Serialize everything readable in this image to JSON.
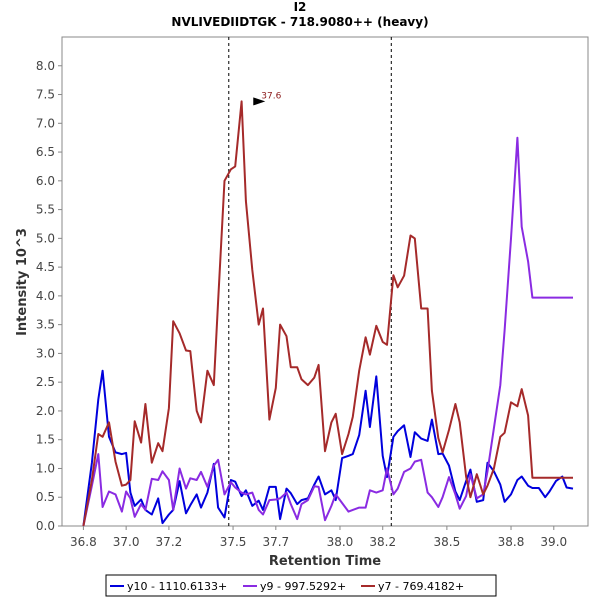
{
  "chart_data": {
    "type": "line",
    "title": "I2",
    "subtitle": "NVLIVEDIIDTGK - 718.9080++ (heavy)",
    "xlabel": "Retention Time",
    "ylabel": "Intensity 10^3",
    "xlim": [
      36.7,
      39.16
    ],
    "ylim": [
      0,
      8.5
    ],
    "xticks": [
      36.8,
      37.0,
      37.2,
      37.5,
      37.7,
      38.0,
      38.2,
      38.5,
      38.8,
      39.0
    ],
    "yticks": [
      0.0,
      0.5,
      1.0,
      1.5,
      2.0,
      2.5,
      3.0,
      3.5,
      4.0,
      4.5,
      5.0,
      5.5,
      6.0,
      6.5,
      7.0,
      7.5,
      8.0
    ],
    "vertical_lines": [
      37.48,
      38.24
    ],
    "annotation": {
      "text": "37.6",
      "x": 37.66,
      "y": 7.38
    },
    "legend_position": "bottom",
    "grid": false,
    "series": [
      {
        "name": "y10 - 1110.6133+",
        "color": "#0000dd",
        "x": [
          36.8,
          36.84,
          36.87,
          36.89,
          36.92,
          36.95,
          36.98,
          37.0,
          37.02,
          37.04,
          37.07,
          37.09,
          37.12,
          37.15,
          37.17,
          37.2,
          37.22,
          37.25,
          37.28,
          37.3,
          37.33,
          37.35,
          37.38,
          37.41,
          37.43,
          37.46,
          37.49,
          37.51,
          37.54,
          37.56,
          37.59,
          37.62,
          37.64,
          37.67,
          37.7,
          37.72,
          37.75,
          37.77,
          37.8,
          37.82,
          37.85,
          37.88,
          37.9,
          37.93,
          37.96,
          37.98,
          38.01,
          38.04,
          38.06,
          38.09,
          38.12,
          38.14,
          38.17,
          38.2,
          38.22,
          38.25,
          38.27,
          38.3,
          38.33,
          38.35,
          38.38,
          38.41,
          38.43,
          38.46,
          38.48,
          38.51,
          38.54,
          38.56,
          38.59,
          38.61,
          38.64,
          38.67,
          38.69,
          38.72,
          38.75,
          38.77,
          38.8,
          38.83,
          38.85,
          38.88,
          38.9,
          38.93,
          38.96,
          38.98,
          39.01,
          39.04,
          39.06,
          39.09
        ],
        "y": [
          0.0,
          1.1,
          2.2,
          2.7,
          1.55,
          1.28,
          1.25,
          1.27,
          0.58,
          0.35,
          0.46,
          0.28,
          0.2,
          0.48,
          0.05,
          0.2,
          0.28,
          0.78,
          0.22,
          0.36,
          0.55,
          0.32,
          0.58,
          1.08,
          0.32,
          0.15,
          0.8,
          0.77,
          0.52,
          0.62,
          0.35,
          0.44,
          0.28,
          0.68,
          0.68,
          0.12,
          0.65,
          0.57,
          0.38,
          0.45,
          0.48,
          0.72,
          0.86,
          0.55,
          0.62,
          0.45,
          1.18,
          1.22,
          1.25,
          1.58,
          2.35,
          1.72,
          2.6,
          1.22,
          0.85,
          1.55,
          1.65,
          1.75,
          1.2,
          1.63,
          1.52,
          1.48,
          1.85,
          1.25,
          1.26,
          1.05,
          0.6,
          0.45,
          0.78,
          0.98,
          0.42,
          0.45,
          1.1,
          0.95,
          0.72,
          0.42,
          0.55,
          0.8,
          0.86,
          0.7,
          0.66,
          0.66,
          0.5,
          0.6,
          0.78,
          0.86,
          0.67,
          0.65
        ]
      },
      {
        "name": "y9 - 997.5292+",
        "color": "#8a2be2",
        "x": [
          36.8,
          36.84,
          36.87,
          36.89,
          36.92,
          36.95,
          36.98,
          37.0,
          37.02,
          37.04,
          37.07,
          37.09,
          37.12,
          37.15,
          37.17,
          37.2,
          37.22,
          37.25,
          37.28,
          37.3,
          37.33,
          37.35,
          37.38,
          37.41,
          37.43,
          37.46,
          37.49,
          37.51,
          37.54,
          37.56,
          37.59,
          37.62,
          37.64,
          37.67,
          37.7,
          37.72,
          37.75,
          37.77,
          37.8,
          37.82,
          37.85,
          37.88,
          37.9,
          37.93,
          37.96,
          37.98,
          38.01,
          38.04,
          38.06,
          38.09,
          38.12,
          38.14,
          38.17,
          38.2,
          38.22,
          38.25,
          38.27,
          38.3,
          38.33,
          38.35,
          38.38,
          38.41,
          38.43,
          38.46,
          38.48,
          38.51,
          38.54,
          38.56,
          38.59,
          38.61,
          38.64,
          38.67,
          38.69,
          38.72,
          38.75,
          38.77,
          38.8,
          38.83,
          38.85,
          38.88,
          38.9,
          38.93,
          38.96,
          38.98,
          39.01,
          39.04,
          39.06,
          39.09
        ],
        "y": [
          0.0,
          0.7,
          1.25,
          0.33,
          0.6,
          0.55,
          0.25,
          0.6,
          0.48,
          0.16,
          0.38,
          0.28,
          0.82,
          0.8,
          0.95,
          0.8,
          0.28,
          1.0,
          0.65,
          0.83,
          0.8,
          0.94,
          0.68,
          1.05,
          1.15,
          0.55,
          0.76,
          0.67,
          0.58,
          0.55,
          0.58,
          0.28,
          0.2,
          0.45,
          0.46,
          0.48,
          0.58,
          0.38,
          0.12,
          0.38,
          0.45,
          0.69,
          0.68,
          0.1,
          0.35,
          0.55,
          0.4,
          0.25,
          0.28,
          0.32,
          0.32,
          0.62,
          0.58,
          0.62,
          1.0,
          0.55,
          0.65,
          0.94,
          1.0,
          1.12,
          1.15,
          0.58,
          0.5,
          0.33,
          0.5,
          0.85,
          0.55,
          0.3,
          0.52,
          0.9,
          0.48,
          0.55,
          0.95,
          1.7,
          2.45,
          3.4,
          5.0,
          6.75,
          5.2,
          4.6,
          3.97,
          3.97,
          3.97,
          3.97,
          3.97,
          3.97,
          3.97,
          3.97
        ]
      },
      {
        "name": "y7 - 769.4182+",
        "color": "#a52a2a",
        "x": [
          36.8,
          36.84,
          36.87,
          36.89,
          36.92,
          36.95,
          36.98,
          37.0,
          37.02,
          37.04,
          37.07,
          37.09,
          37.12,
          37.15,
          37.17,
          37.2,
          37.22,
          37.25,
          37.28,
          37.3,
          37.33,
          37.35,
          37.38,
          37.41,
          37.43,
          37.46,
          37.49,
          37.51,
          37.54,
          37.56,
          37.59,
          37.62,
          37.64,
          37.67,
          37.7,
          37.72,
          37.75,
          37.77,
          37.8,
          37.82,
          37.85,
          37.88,
          37.9,
          37.93,
          37.96,
          37.98,
          38.01,
          38.04,
          38.06,
          38.09,
          38.12,
          38.14,
          38.17,
          38.2,
          38.22,
          38.25,
          38.27,
          38.3,
          38.33,
          38.35,
          38.38,
          38.41,
          38.43,
          38.46,
          38.48,
          38.51,
          38.54,
          38.56,
          38.59,
          38.61,
          38.64,
          38.67,
          38.69,
          38.72,
          38.75,
          38.77,
          38.8,
          38.83,
          38.85,
          38.88,
          38.9,
          38.93,
          38.96,
          38.98,
          39.01,
          39.04,
          39.06,
          39.09
        ],
        "y": [
          0.0,
          0.8,
          1.6,
          1.55,
          1.8,
          1.12,
          0.7,
          0.72,
          0.8,
          1.82,
          1.45,
          2.12,
          1.1,
          1.44,
          1.3,
          2.05,
          3.56,
          3.35,
          3.05,
          3.04,
          2.0,
          1.8,
          2.7,
          2.45,
          3.9,
          6.0,
          6.2,
          6.25,
          7.38,
          5.65,
          4.45,
          3.5,
          3.78,
          1.85,
          2.4,
          3.5,
          3.3,
          2.76,
          2.76,
          2.55,
          2.45,
          2.58,
          2.8,
          1.3,
          1.8,
          1.95,
          1.25,
          1.6,
          1.9,
          2.7,
          3.28,
          2.98,
          3.48,
          3.2,
          3.15,
          4.36,
          4.15,
          4.35,
          5.05,
          5.0,
          3.78,
          3.78,
          2.35,
          1.53,
          1.28,
          1.67,
          2.12,
          1.8,
          0.86,
          0.5,
          0.9,
          0.55,
          0.7,
          1.0,
          1.55,
          1.62,
          2.15,
          2.08,
          2.38,
          1.92,
          0.84,
          0.84,
          0.84,
          0.84,
          0.84,
          0.84,
          0.84,
          0.84
        ]
      }
    ]
  }
}
